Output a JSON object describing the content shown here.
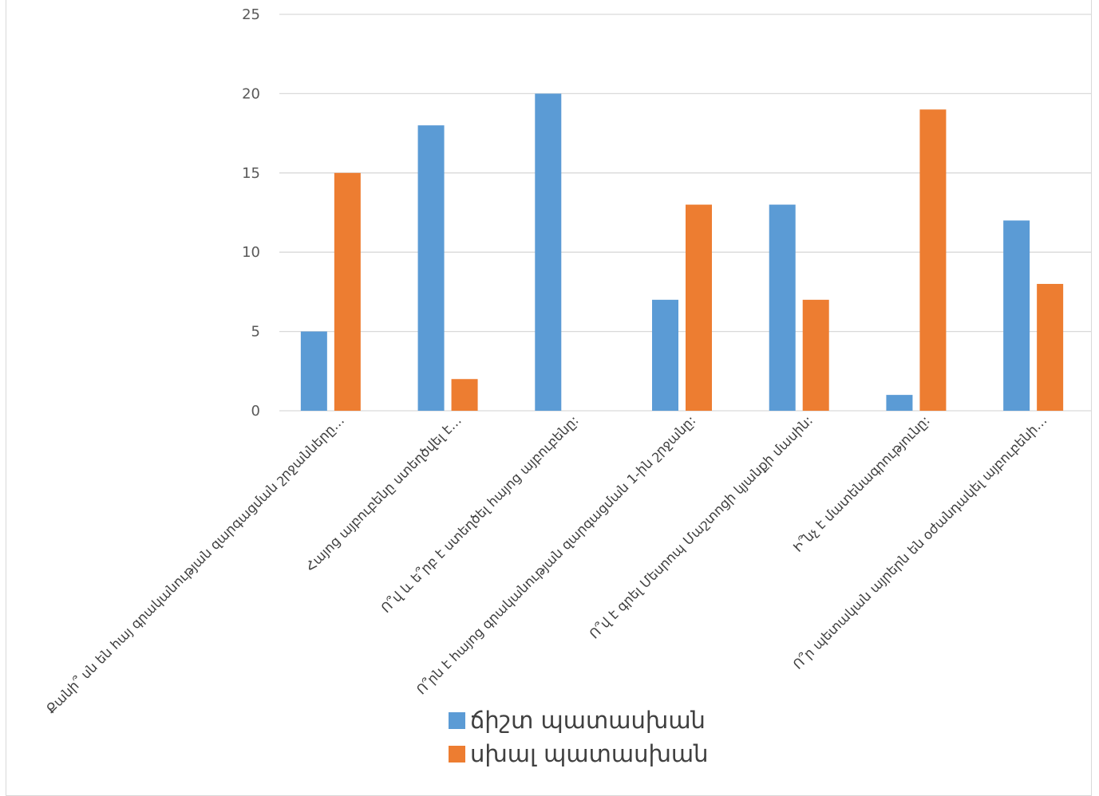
{
  "chart_data": {
    "type": "bar",
    "categories": [
      "Քանի՞ սն են հայ գրականության զարգացման շրջանները…",
      "Հայոց այբուբենը ստեղծվել է…",
      "Ո՞վ և ե՞րբ է ստեղծել հայոց այբուբենը:",
      "Ո՞րն է հայոց գրականության զարգացման 1-ին շրջանը:",
      "Ո՞վ է գրել Մեսրոպ Մաշտոցի կյանքի մասին:",
      "Ի՞նչ է մատենագրությունը:",
      "Ո՞ր պետական այրերն են օժանդակել այբուբենի…"
    ],
    "series": [
      {
        "name": "ճիշտ պատասխան",
        "color": "#5b9bd5",
        "values": [
          5,
          18,
          20,
          7,
          13,
          1,
          12
        ]
      },
      {
        "name": "սխալ պատասխան",
        "color": "#ed7d31",
        "values": [
          15,
          2,
          0,
          13,
          7,
          19,
          8
        ]
      }
    ],
    "y_ticks": [
      "0",
      "5",
      "10",
      "15",
      "20",
      "25"
    ],
    "ylim": [
      0,
      25
    ],
    "grid": true,
    "legend_position": "bottom"
  }
}
